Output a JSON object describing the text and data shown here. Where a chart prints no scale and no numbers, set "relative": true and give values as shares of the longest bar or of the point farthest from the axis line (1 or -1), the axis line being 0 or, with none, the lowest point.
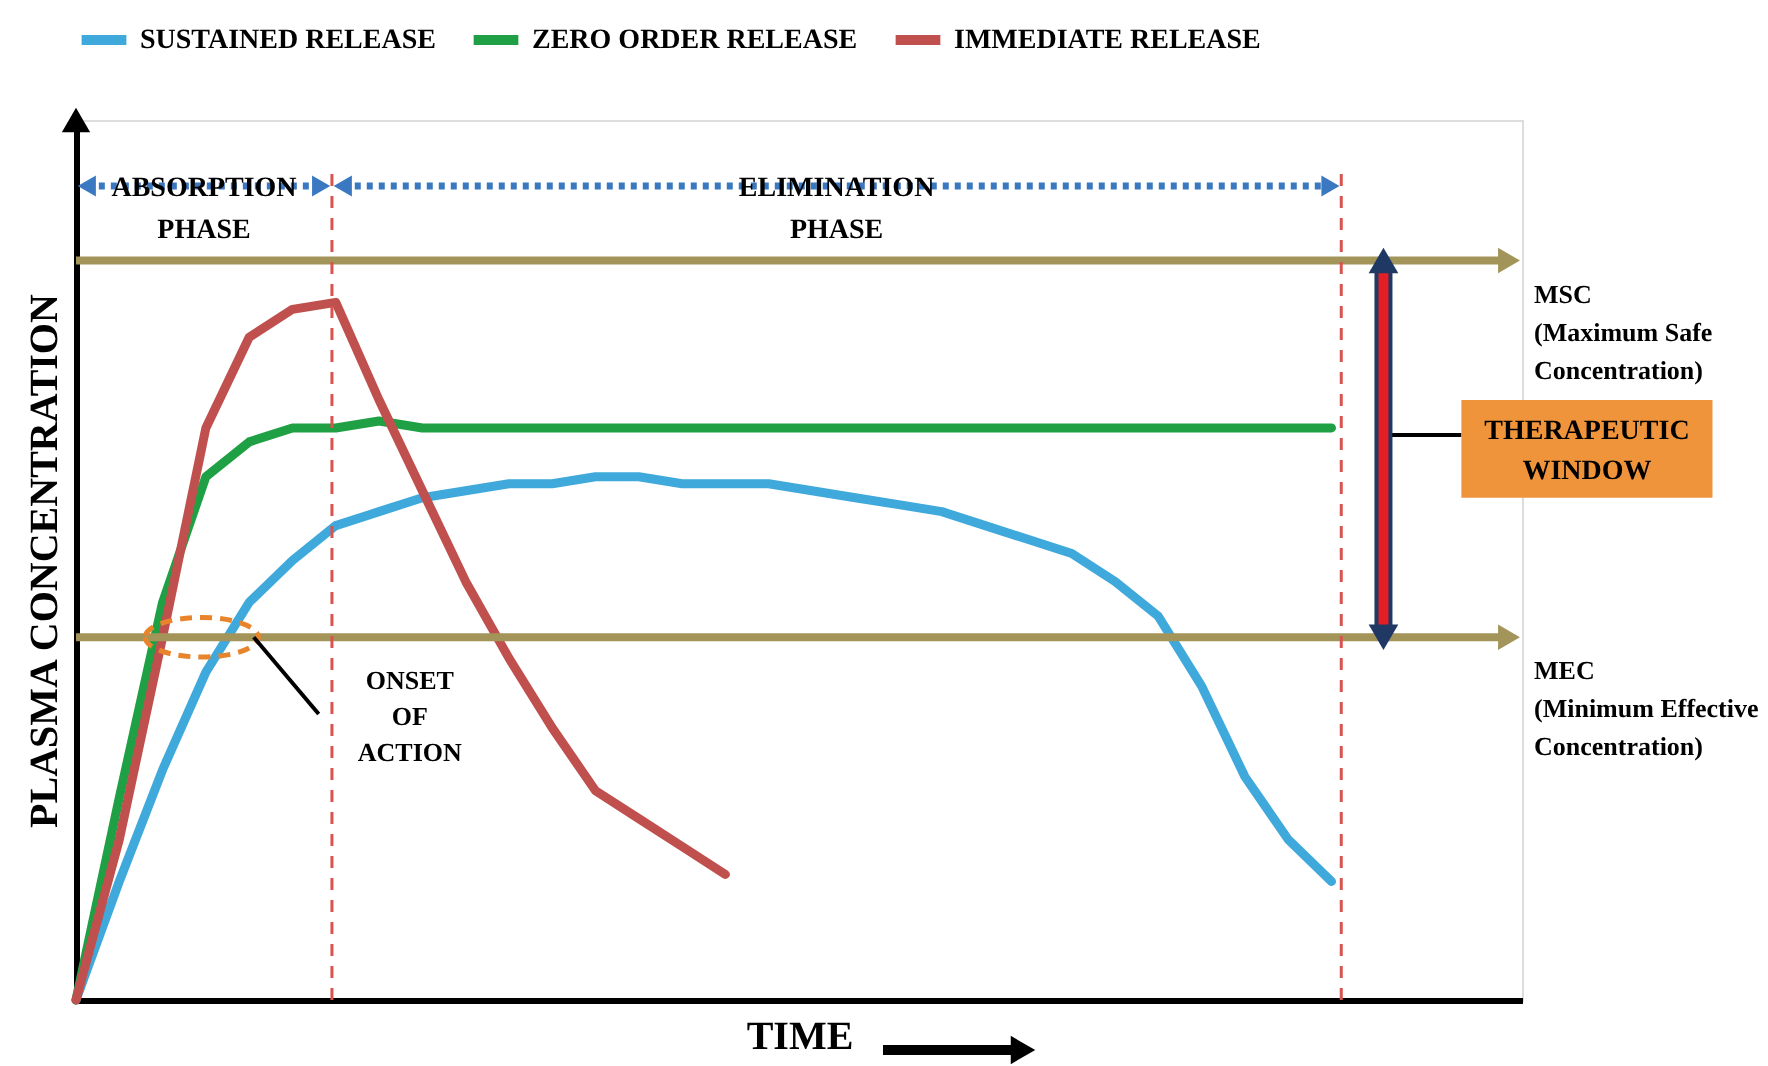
{
  "chart_data": {
    "type": "line",
    "relative": true,
    "xlabel": "TIME",
    "ylabel": "PLASMA CONCENTRATION",
    "legend": "top",
    "tick_labels": false,
    "grid": false,
    "line_style": "solid",
    "categories": [
      null,
      null,
      null,
      null,
      null,
      null,
      null,
      null,
      null,
      null,
      null,
      null,
      null,
      null,
      null,
      null,
      null,
      null,
      null,
      null,
      null,
      null,
      null,
      null,
      null,
      null,
      null,
      null,
      null,
      null
    ],
    "series": [
      {
        "name": "SUSTAINED RELEASE",
        "color": "#3fa9dc",
        "values": [
          0,
          0.17,
          0.33,
          0.47,
          0.57,
          0.63,
          0.68,
          0.7,
          0.72,
          0.73,
          0.74,
          0.74,
          0.75,
          0.75,
          0.74,
          0.74,
          0.74,
          0.73,
          0.72,
          0.71,
          0.7,
          0.68,
          0.66,
          0.64,
          0.6,
          0.55,
          0.45,
          0.32,
          0.23,
          0.17
        ]
      },
      {
        "name": "ZERO ORDER RELEASE",
        "color": "#1fa045",
        "values": [
          0,
          0.29,
          0.57,
          0.75,
          0.8,
          0.82,
          0.82,
          0.83,
          0.82,
          0.82,
          0.82,
          0.82,
          0.82,
          0.82,
          0.82,
          0.82,
          0.82,
          0.82,
          0.82,
          0.82,
          0.82,
          0.82,
          0.82,
          0.82,
          0.82,
          0.82,
          0.82,
          0.82,
          0.82,
          0.82
        ]
      },
      {
        "name": "IMMEDIATE RELEASE",
        "color": "#c0504d",
        "values": [
          0,
          0.23,
          0.52,
          0.82,
          0.95,
          0.99,
          1.0,
          0.86,
          0.73,
          0.6,
          0.49,
          0.39,
          0.3,
          0.26,
          0.22,
          0.18,
          null,
          null,
          null,
          null,
          null,
          null,
          null,
          null,
          null,
          null,
          null,
          null,
          null,
          null
        ]
      }
    ],
    "ref_lines": [
      {
        "axis": "y",
        "value": 1.06,
        "label": "MSC\n(Maximum Safe\nConcentration)",
        "color": "#a3955a",
        "line_style": "solid"
      },
      {
        "axis": "y",
        "value": 0.52,
        "label": "MEC\n(Minimum Effective\nConcentration)",
        "color": "#a3955a",
        "line_style": "solid"
      }
    ],
    "annotations": [
      "ABSORPTION PHASE",
      "ELIMINATION PHASE",
      "ONSET OF ACTION",
      "THERAPEUTIC WINDOW"
    ]
  }
}
